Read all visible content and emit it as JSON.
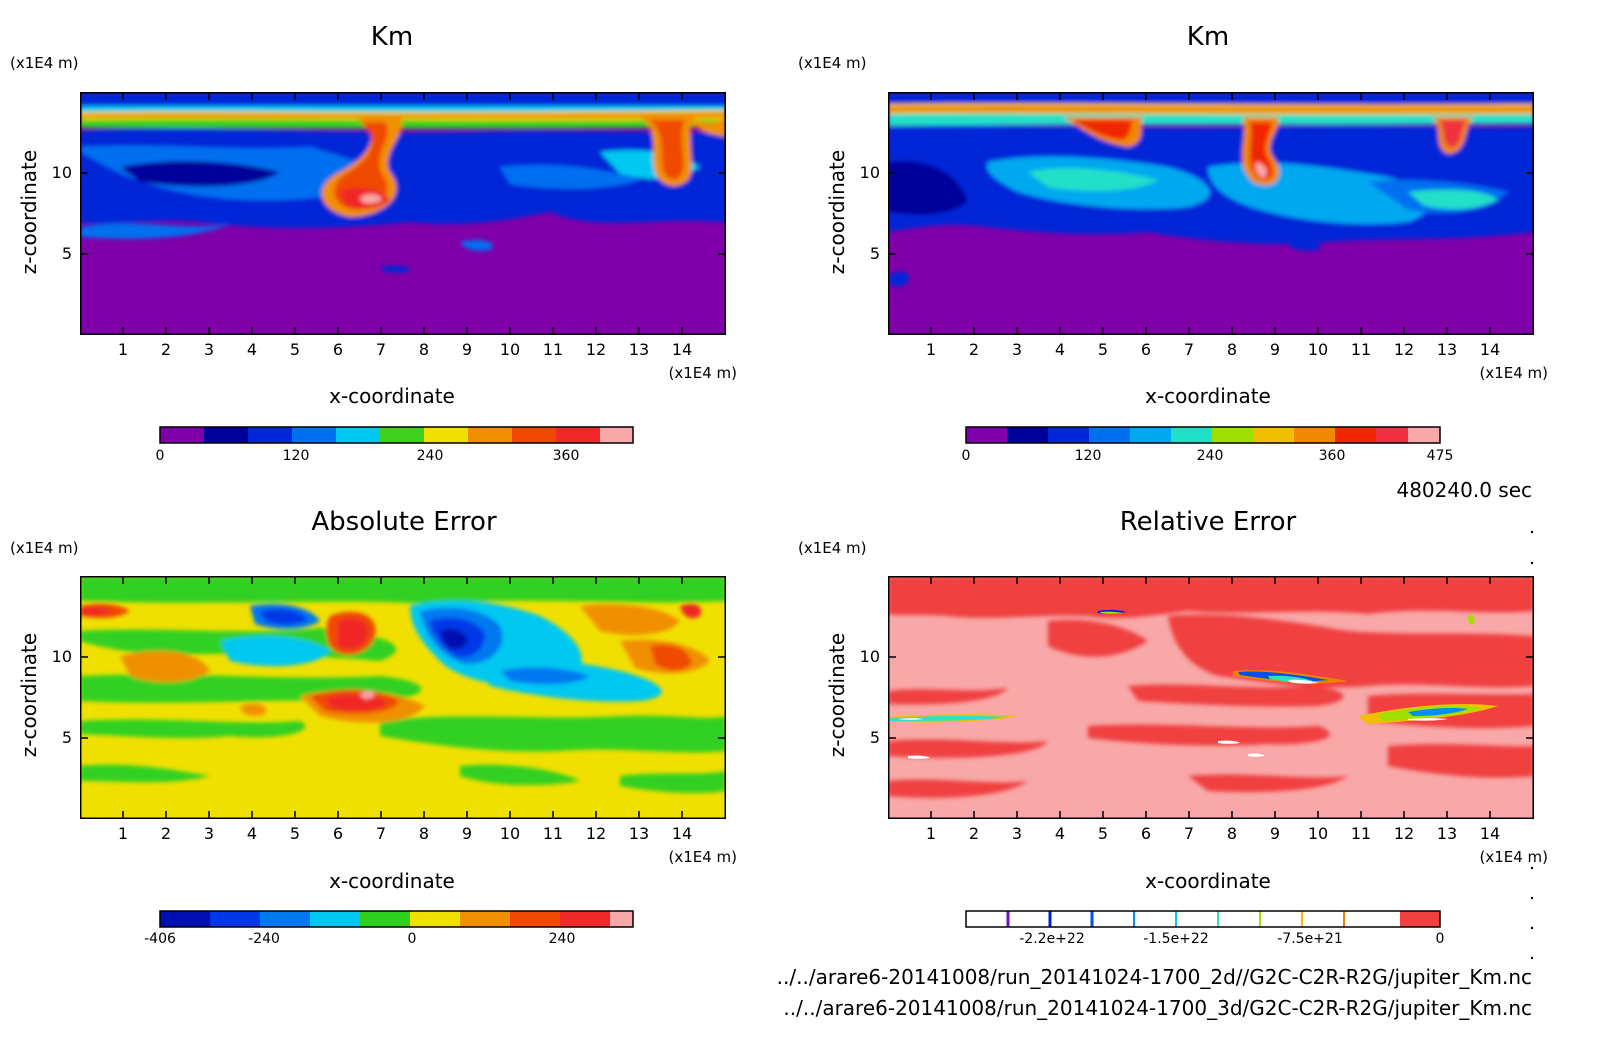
{
  "chart_data": [
    {
      "type": "heatmap",
      "title": "Km",
      "xlabel": "x-coordinate",
      "ylabel": "z-coordinate",
      "x_unit": "(x1E4 m)",
      "y_unit": "(x1E4 m)",
      "xlim": [
        0,
        15
      ],
      "ylim": [
        0,
        15
      ],
      "x_ticks": [
        "1",
        "2",
        "3",
        "4",
        "5",
        "6",
        "7",
        "8",
        "9",
        "10",
        "11",
        "12",
        "13",
        "14"
      ],
      "y_ticks": [
        "5",
        "10"
      ],
      "colorbar": {
        "colors": [
          "#7f00a8",
          "#00009a",
          "#0028d8",
          "#0070f0",
          "#00c8f0",
          "#40d020",
          "#f0e000",
          "#f09000",
          "#f04800",
          "#f02828",
          "#f8a8a8"
        ],
        "tick_labels": [
          "0",
          "120",
          "240",
          "360"
        ]
      }
    },
    {
      "type": "heatmap",
      "title": "Km",
      "xlabel": "x-coordinate",
      "ylabel": "z-coordinate",
      "x_unit": "(x1E4 m)",
      "y_unit": "(x1E4 m)",
      "xlim": [
        0,
        15
      ],
      "ylim": [
        0,
        15
      ],
      "x_ticks": [
        "1",
        "2",
        "3",
        "4",
        "5",
        "6",
        "7",
        "8",
        "9",
        "10",
        "11",
        "12",
        "13",
        "14"
      ],
      "y_ticks": [
        "5",
        "10"
      ],
      "colorbar": {
        "colors": [
          "#7f00a8",
          "#00009a",
          "#0028d8",
          "#0070f0",
          "#00a8f0",
          "#20e0c8",
          "#a0e000",
          "#f0c000",
          "#f08800",
          "#f02800",
          "#f03040",
          "#f8a8a8"
        ],
        "tick_labels": [
          "0",
          "120",
          "240",
          "360",
          "475"
        ]
      }
    },
    {
      "type": "heatmap",
      "title": "Absolute Error",
      "xlabel": "x-coordinate",
      "ylabel": "z-coordinate",
      "x_unit": "(x1E4 m)",
      "y_unit": "(x1E4 m)",
      "xlim": [
        0,
        15
      ],
      "ylim": [
        0,
        15
      ],
      "x_ticks": [
        "1",
        "2",
        "3",
        "4",
        "5",
        "6",
        "7",
        "8",
        "9",
        "10",
        "11",
        "12",
        "13",
        "14"
      ],
      "y_ticks": [
        "5",
        "10"
      ],
      "colorbar": {
        "colors": [
          "#0010b0",
          "#0038e8",
          "#0078f0",
          "#00c8f0",
          "#30d020",
          "#f0e000",
          "#f09000",
          "#f04800",
          "#f02828",
          "#f8a8a8"
        ],
        "tick_labels": [
          "-406",
          "-240",
          "0",
          "240"
        ]
      }
    },
    {
      "type": "heatmap",
      "title": "Relative Error",
      "xlabel": "x-coordinate",
      "ylabel": "z-coordinate",
      "x_unit": "(x1E4 m)",
      "y_unit": "(x1E4 m)",
      "xlim": [
        0,
        15
      ],
      "ylim": [
        0,
        15
      ],
      "x_ticks": [
        "1",
        "2",
        "3",
        "4",
        "5",
        "6",
        "7",
        "8",
        "9",
        "10",
        "11",
        "12",
        "13",
        "14"
      ],
      "y_ticks": [
        "5",
        "10"
      ],
      "colorbar": {
        "colors": [
          "#ffffff",
          "#ffffff",
          "#ffffff",
          "#ffffff",
          "#ffffff",
          "#ffffff",
          "#ffffff",
          "#ffffff",
          "#ffffff",
          "#ffffff",
          "#f04040"
        ],
        "separator_colors": [
          "#7010c0",
          "#0020d0",
          "#0050f0",
          "#0090f0",
          "#00c8f0",
          "#30e0c0",
          "#a0e000",
          "#f0c000",
          "#f08000",
          "#f04000"
        ],
        "tick_labels": [
          "-2.2e+22",
          "-1.5e+22",
          "-7.5e+21",
          "0"
        ]
      }
    }
  ],
  "time_label": "480240.0 sec",
  "file_paths": [
    "../../arare6-20141008/run_20141024-1700_2d//G2C-C2R-R2G/jupiter_Km.nc",
    "../../arare6-20141008/run_20141024-1700_3d/G2C-C2R-R2G/jupiter_Km.nc"
  ],
  "colors": {
    "km_background": "#7f00a8",
    "abs_background": "#f0e000",
    "rel_background": "#f8a8a8",
    "rel_foreground": "#f04040"
  }
}
